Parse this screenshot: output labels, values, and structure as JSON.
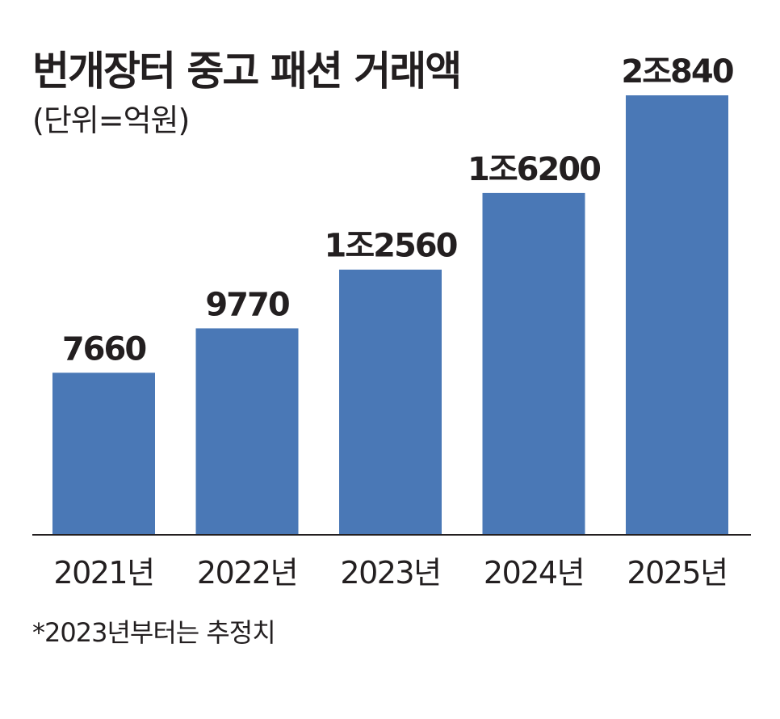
{
  "title": "번개장터 중고 패션 거래액",
  "unit": "(단위=억원)",
  "footnote": "*2023년부터는 추정치",
  "colors": {
    "bar": "#4a78b6",
    "axis": "#231f20",
    "text": "#231f20"
  },
  "chart_data": {
    "type": "bar",
    "title": "번개장터 중고 패션 거래액",
    "ylabel": "",
    "xlabel": "",
    "categories": [
      "2021년",
      "2022년",
      "2023년",
      "2024년",
      "2025년"
    ],
    "values": [
      7660,
      9770,
      12560,
      16200,
      20840
    ],
    "value_labels": [
      "7660",
      "9770",
      "1조2560",
      "1조6200",
      "2조840"
    ],
    "ylim": [
      0,
      20840
    ],
    "grid": false,
    "legend": "none"
  }
}
